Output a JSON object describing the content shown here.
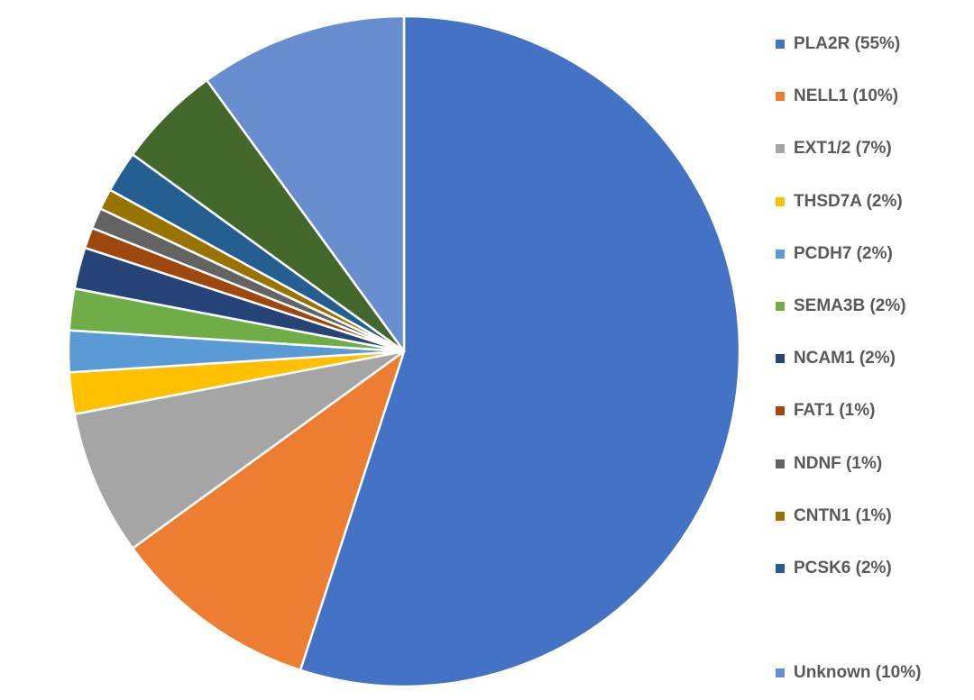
{
  "chart_data": {
    "type": "pie",
    "title": "",
    "legend_position": "right",
    "start_angle": "top",
    "direction": "clockwise",
    "slices": [
      {
        "label": "PLA2R (55%)",
        "value": 55,
        "color": "#4472C4"
      },
      {
        "label": "NELL1 (10%)",
        "value": 10,
        "color": "#ED7D31"
      },
      {
        "label": "EXT1/2 (7%)",
        "value": 7,
        "color": "#A5A5A5"
      },
      {
        "label": "THSD7A (2%)",
        "value": 2,
        "color": "#FFC000"
      },
      {
        "label": "PCDH7 (2%)",
        "value": 2,
        "color": "#5B9BD5"
      },
      {
        "label": "SEMA3B (2%)",
        "value": 2,
        "color": "#70AD47"
      },
      {
        "label": "NCAM1 (2%)",
        "value": 2,
        "color": "#264478"
      },
      {
        "label": "FAT1 (1%)",
        "value": 1,
        "color": "#9E480E"
      },
      {
        "label": "NDNF (1%)",
        "value": 1,
        "color": "#636363"
      },
      {
        "label": "CNTN1 (1%)",
        "value": 1,
        "color": "#997300"
      },
      {
        "label": "PCSK6 (2%)",
        "value": 2,
        "color": "#255E91"
      },
      {
        "label": "",
        "value": 5,
        "color": "#43682B"
      },
      {
        "label": "Unknown (10%)",
        "value": 10,
        "color": "#698ED0"
      }
    ]
  }
}
